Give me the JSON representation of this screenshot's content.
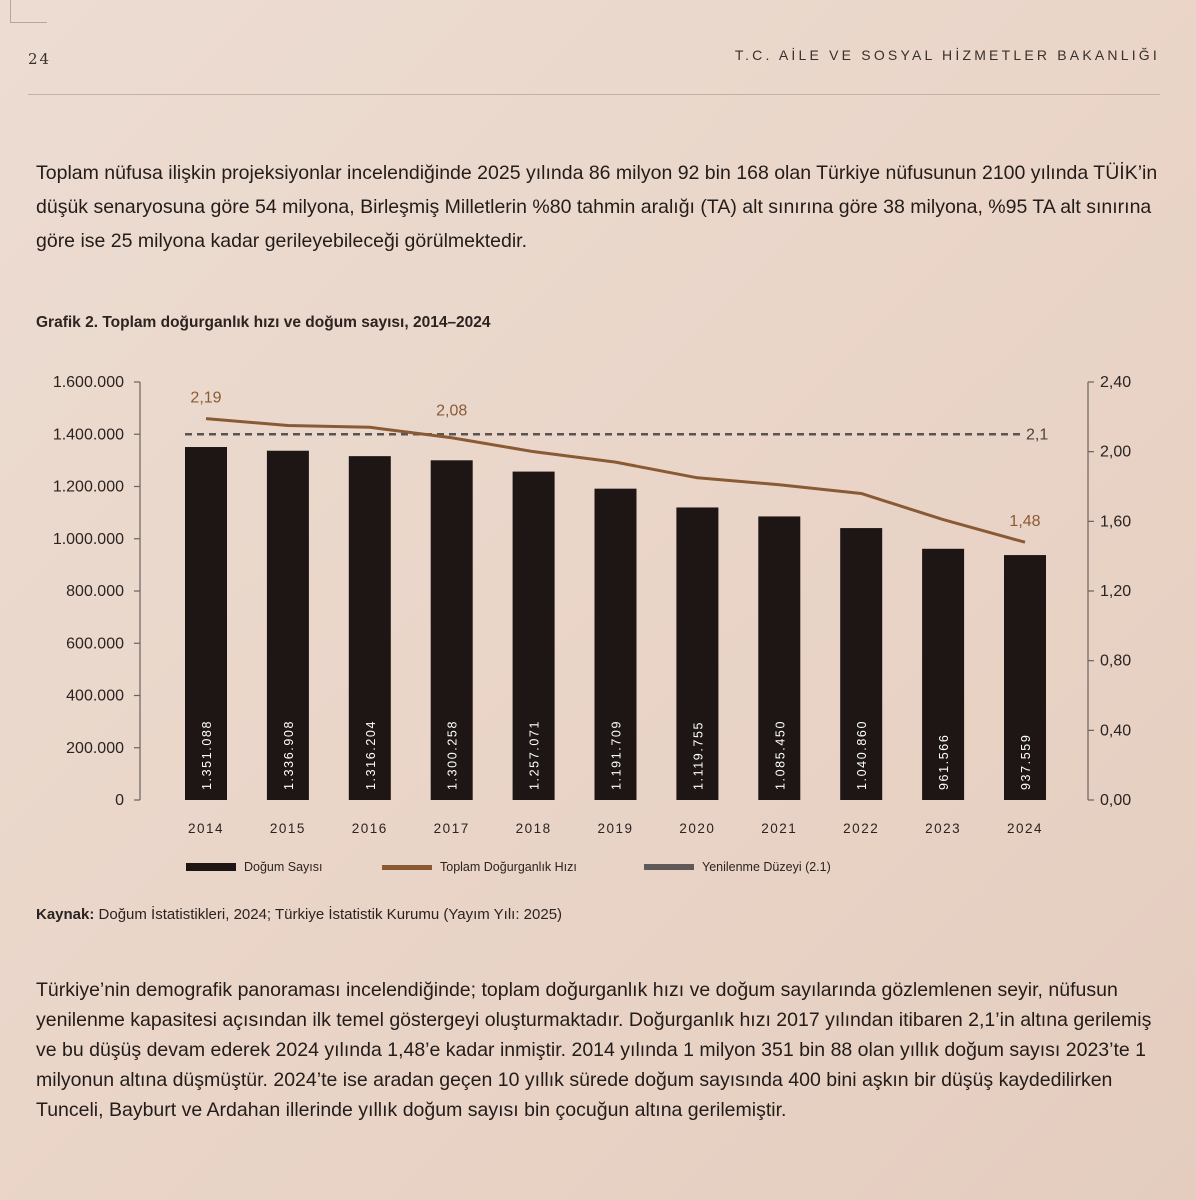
{
  "header": {
    "page_number": "24",
    "running_head": "T.C. AİLE VE SOSYAL HİZMETLER BAKANLIĞI"
  },
  "intro_paragraph": "Toplam nüfusa ilişkin projeksiyonlar incelendiğinde 2025 yılında 86 milyon 92 bin 168 olan Türkiye nüfusunun 2100 yılında TÜİK’in düşük senaryosuna göre 54 milyona, Birleşmiş Milletlerin %80 tahmin aralığı (TA) alt sınırına göre 38 milyona, %95 TA alt sınırına göre ise 25 milyona kadar gerileyebileceği görülmektedir.",
  "chart_data": {
    "type": "bar",
    "title": "Grafik 2. Toplam doğurganlık hızı ve doğum sayısı, 2014–2024",
    "categories": [
      "2014",
      "2015",
      "2016",
      "2017",
      "2018",
      "2019",
      "2020",
      "2021",
      "2022",
      "2023",
      "2024"
    ],
    "series": [
      {
        "name": "Doğum Sayısı",
        "type": "bar",
        "axis": "left",
        "color": "#1e1614",
        "values": [
          1351088,
          1336908,
          1316204,
          1300258,
          1257071,
          1191709,
          1119755,
          1085450,
          1040860,
          961566,
          937559
        ],
        "value_labels": [
          "1.351.088",
          "1.336.908",
          "1.316.204",
          "1.300.258",
          "1.257.071",
          "1.191.709",
          "1.119.755",
          "1.085.450",
          "1.040.860",
          "961.566",
          "937.559"
        ]
      },
      {
        "name": "Toplam Doğurganlık Hızı",
        "type": "line",
        "axis": "right",
        "color": "#8a5a35",
        "values": [
          2.19,
          2.15,
          2.14,
          2.08,
          2.0,
          1.94,
          1.85,
          1.81,
          1.76,
          1.61,
          1.48
        ]
      },
      {
        "name": "Yenilenme Düzeyi (2.1)",
        "type": "line",
        "style": "dashed",
        "axis": "right",
        "color": "#5a5350",
        "values": [
          2.1,
          2.1,
          2.1,
          2.1,
          2.1,
          2.1,
          2.1,
          2.1,
          2.1,
          2.1,
          2.1
        ]
      }
    ],
    "annotations": [
      {
        "series": "Toplam Doğurganlık Hızı",
        "category": "2014",
        "text": "2,19"
      },
      {
        "series": "Toplam Doğurganlık Hızı",
        "category": "2017",
        "text": "2,08"
      },
      {
        "series": "Toplam Doğurganlık Hızı",
        "category": "2024",
        "text": "1,48"
      },
      {
        "series": "Yenilenme Düzeyi (2.1)",
        "category": "2024",
        "text": "2,1"
      }
    ],
    "y_left": {
      "ylim": [
        0,
        1600000
      ],
      "ticks": [
        0,
        200000,
        400000,
        600000,
        800000,
        1000000,
        1200000,
        1400000,
        1600000
      ],
      "tick_labels": [
        "0",
        "200.000",
        "400.000",
        "600.000",
        "800.000",
        "1.000.000",
        "1.200.000",
        "1.400.000",
        "1.600.000"
      ]
    },
    "y_right": {
      "ylim": [
        0,
        2.4
      ],
      "ticks": [
        0,
        0.4,
        0.8,
        1.2,
        1.6,
        2.0,
        2.4
      ],
      "tick_labels": [
        "0,00",
        "0,40",
        "0,80",
        "1,20",
        "1,60",
        "2,00",
        "2,40"
      ]
    },
    "grid": false,
    "legend": "bottom"
  },
  "source": {
    "label": "Kaynak:",
    "text": " Doğum İstatistikleri, 2024; Türkiye İstatistik Kurumu (Yayım Yılı: 2025)"
  },
  "body_paragraph": "Türkiye’nin demografik panoraması incelendiğinde; toplam doğurganlık hızı ve doğum sayılarında gözlemlenen seyir, nüfusun yenilenme kapasitesi açısından ilk temel göstergeyi oluşturmaktadır. Doğurganlık hızı 2017 yılından itibaren 2,1’in altına gerilemiş ve bu düşüş devam ederek 2024 yılında 1,48’e kadar inmiştir. 2014 yılında 1 milyon 351 bin 88 olan yıllık doğum sayısı 2023’te 1 milyonun altına düşmüştür. 2024’te ise aradan geçen 10 yıllık sürede doğum sayısında 400 bini aşkın bir düşüş kaydedilirken Tunceli, Bayburt ve Ardahan illerinde yıllık doğum sayısı bin çocuğun altına gerilemiştir."
}
